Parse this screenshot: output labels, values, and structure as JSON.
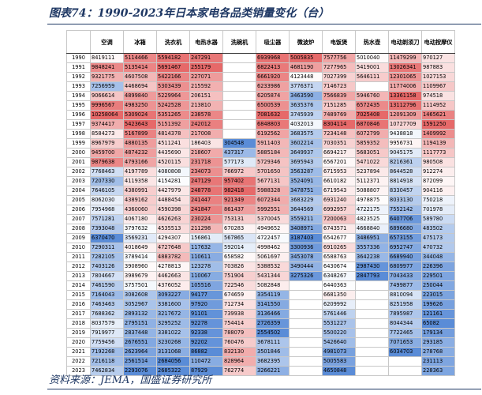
{
  "title": "图表74：1990-2023年日本家电各品类销量变化（台）",
  "table": {
    "header": [
      "空调",
      "冰箱",
      "洗衣机",
      "电热水器",
      "洗碗机",
      "吸尘器",
      "微波炉",
      "电饭煲",
      "热水壶",
      "电动剃须刀",
      "电动按摩仪"
    ],
    "rows": [
      [
        "1990",
        8419111,
        5114466,
        5594182,
        247291,
        null,
        6939968,
        5005835,
        7577756,
        5010040,
        11479299,
        970127
      ],
      [
        "1991",
        9848241,
        5135414,
        5691467,
        255179,
        null,
        6822413,
        4681190,
        7277965,
        5419001,
        13026341,
        987883
      ],
      [
        "1992",
        9321775,
        4607508,
        5422166,
        227071,
        null,
        6661920,
        4123448,
        7027399,
        5646111,
        12301065,
        1027153
      ],
      [
        "1993",
        7256959,
        4468694,
        5303439,
        215592,
        null,
        6233986,
        3776371,
        7146723,
        null,
        11774006,
        1109967
      ],
      [
        "1994",
        9066614,
        4899840,
        5229964,
        206151,
        null,
        6205874,
        3463590,
        7566839,
        5946760,
        13361158,
        974518
      ],
      [
        "1995",
        9996567,
        4983250,
        5242528,
        213810,
        null,
        6500539,
        3635376,
        7151285,
        6572435,
        13112796,
        1114952
      ],
      [
        "1996",
        10258064,
        5309024,
        5351265,
        238578,
        null,
        7081632,
        3745939,
        7489769,
        7025408,
        12091309,
        1465621
      ],
      [
        "1997",
        9374417,
        5423643,
        5151392,
        242012,
        null,
        6848803,
        4032013,
        8304114,
        6870846,
        10727709,
        1591250
      ],
      [
        "1998",
        8584273,
        5167899,
        4814378,
        217008,
        null,
        6192562,
        3683575,
        7234148,
        6072799,
        9438818,
        1409992
      ],
      [
        "1999",
        8967979,
        4880135,
        4511241,
        186403,
        304548,
        5911403,
        3602214,
        7030351,
        5859352,
        9956731,
        1194139
      ],
      [
        "2000",
        9459700,
        4874232,
        4435690,
        218607,
        437317,
        5885184,
        3649937,
        6694217,
        5683051,
        9045175,
        1117773
      ],
      [
        "2001",
        9879638,
        4793166,
        4520115,
        231718,
        577173,
        5729346,
        3695943,
        6567201,
        5471022,
        8216361,
        980508
      ],
      [
        "2002",
        7768463,
        4197789,
        4080808,
        234073,
        766972,
        5701650,
        3563287,
        6715953,
        5237894,
        8644528,
        912274
      ],
      [
        "2003",
        7207330,
        4119358,
        4154281,
        247129,
        957402,
        5677131,
        3524091,
        6610182,
        5112371,
        8814918,
        872099
      ],
      [
        "2004",
        7646105,
        4380991,
        4427979,
        248778,
        982418,
        5988328,
        3478751,
        6719543,
        5088807,
        8330457,
        904116
      ],
      [
        "2005",
        8062030,
        4389162,
        4488454,
        241447,
        921349,
        6072344,
        3683229,
        6931240,
        4978875,
        8033130,
        750218
      ],
      [
        "2006",
        7954968,
        4360060,
        4590398,
        241847,
        861437,
        5992551,
        3644569,
        6992957,
        4722175,
        7552142,
        701978
      ],
      [
        "2007",
        7571281,
        4067180,
        4626263,
        230224,
        753131,
        5370045,
        3559211,
        7200063,
        4823525,
        6407706,
        589780
      ],
      [
        "2008",
        7393048,
        3797632,
        4535513,
        211298,
        670283,
        4949652,
        3408971,
        6743571,
        4668840,
        6896680,
        483502
      ],
      [
        "2009",
        6370470,
        3569231,
        4294307,
        156861,
        567865,
        4722457,
        3187403,
        6542677,
        3486951,
        6573155,
        475173
      ],
      [
        "2010",
        7290311,
        4018649,
        4727648,
        117632,
        592014,
        4998462,
        3300936,
        6910265,
        3557336,
        6952747,
        470732
      ],
      [
        "2011",
        7282105,
        3789414,
        4883782,
        110611,
        658582,
        5061697,
        3453078,
        6588763,
        3642238,
        6689940,
        344048
      ],
      [
        "2012",
        7403126,
        3908960,
        4278813,
        123278,
        703826,
        5388532,
        3490444,
        6430674,
        2987430,
        6809977,
        226396
      ],
      [
        "2013",
        7804667,
        3989679,
        4462663,
        110067,
        751904,
        5431344,
        3275326,
        6348267,
        2847793,
        7043433,
        229501
      ],
      [
        "2014",
        7461590,
        3757501,
        4376052,
        105516,
        722546,
        5082848,
        null,
        6440363,
        null,
        7499877,
        250044
      ],
      [
        "2015",
        7164043,
        3082608,
        3093227,
        94177,
        674659,
        3354119,
        null,
        6681350,
        null,
        8810094,
        223015
      ],
      [
        "2016",
        7463463,
        3052967,
        3381600,
        97920,
        712734,
        3141550,
        null,
        6209992,
        null,
        8251958,
        199626
      ],
      [
        "2017",
        7688362,
        2893132,
        3217672,
        91101,
        739938,
        3136466,
        null,
        5761446,
        null,
        7895987,
        121161
      ],
      [
        "2018",
        8037579,
        2795151,
        3295252,
        92278,
        754414,
        2726359,
        null,
        5531227,
        null,
        8044344,
        65082
      ],
      [
        "2019",
        7919977,
        2837448,
        3381022,
        92338,
        788079,
        2554502,
        null,
        5500220,
        null,
        7722465,
        179134
      ],
      [
        "2020",
        7759456,
        2676551,
        3230268,
        92202,
        760476,
        3678111,
        null,
        5426640,
        null,
        7071653,
        293185
      ],
      [
        "2021",
        7192268,
        2623964,
        3131068,
        86882,
        832130,
        3501846,
        null,
        4981073,
        null,
        6034703,
        278768
      ],
      [
        "2022",
        7216118,
        2561514,
        2684056,
        110472,
        828964,
        3682395,
        null,
        5005583,
        null,
        null,
        231113
      ],
      [
        "2023",
        7462834,
        2293076,
        2685322,
        87929,
        762774,
        3266221,
        null,
        4650848,
        null,
        null,
        228363
      ]
    ]
  },
  "source": "资料来源：JEMA，国盛证券研究所"
}
